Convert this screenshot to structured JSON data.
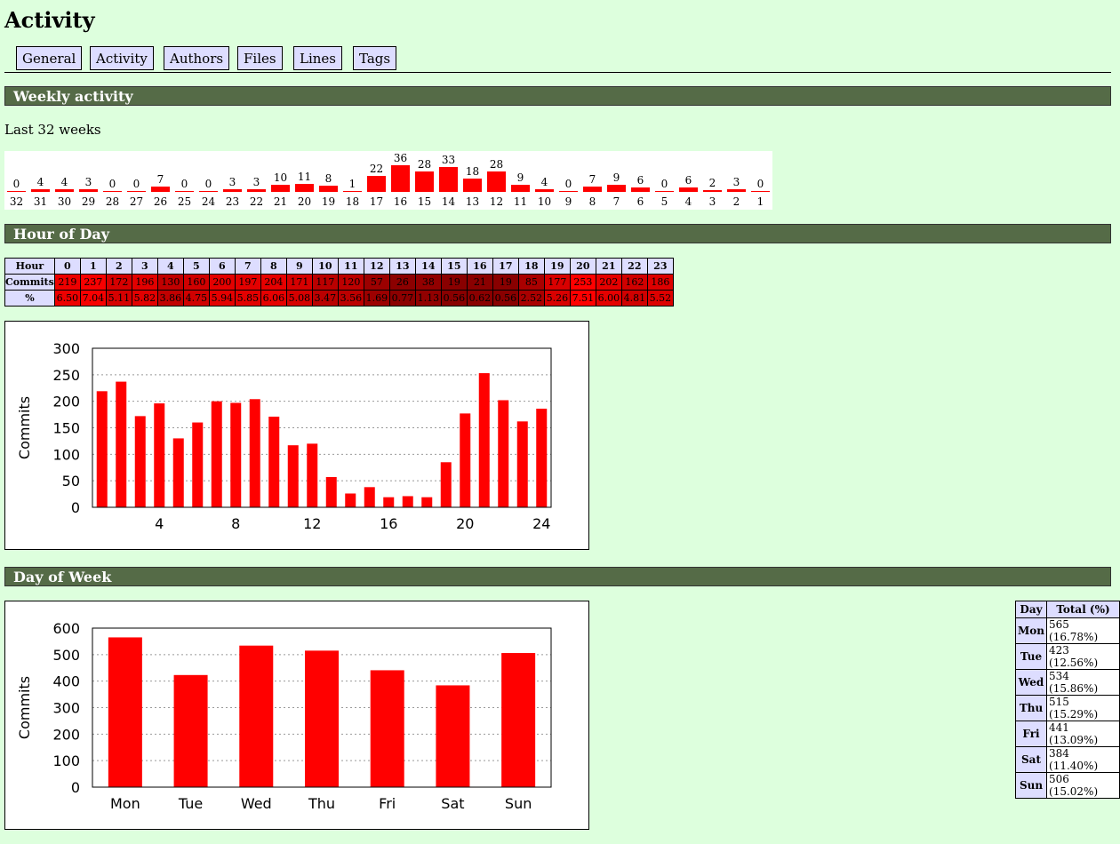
{
  "page_title": "Activity",
  "nav": [
    {
      "label": "General"
    },
    {
      "label": "Activity"
    },
    {
      "label": "Authors"
    },
    {
      "label": "Files"
    },
    {
      "label": "Lines"
    },
    {
      "label": "Tags"
    }
  ],
  "sections": {
    "weekly": "Weekly activity",
    "hour": "Hour of Day",
    "day": "Day of Week"
  },
  "weekly": {
    "subtitle": "Last 32 weeks",
    "weeks": [
      {
        "label": "32",
        "value": 0
      },
      {
        "label": "31",
        "value": 4
      },
      {
        "label": "30",
        "value": 4
      },
      {
        "label": "29",
        "value": 3
      },
      {
        "label": "28",
        "value": 0
      },
      {
        "label": "27",
        "value": 0
      },
      {
        "label": "26",
        "value": 7
      },
      {
        "label": "25",
        "value": 0
      },
      {
        "label": "24",
        "value": 0
      },
      {
        "label": "23",
        "value": 3
      },
      {
        "label": "22",
        "value": 3
      },
      {
        "label": "21",
        "value": 10
      },
      {
        "label": "20",
        "value": 11
      },
      {
        "label": "19",
        "value": 8
      },
      {
        "label": "18",
        "value": 1
      },
      {
        "label": "17",
        "value": 22
      },
      {
        "label": "16",
        "value": 36
      },
      {
        "label": "15",
        "value": 28
      },
      {
        "label": "14",
        "value": 33
      },
      {
        "label": "13",
        "value": 18
      },
      {
        "label": "12",
        "value": 28
      },
      {
        "label": "11",
        "value": 9
      },
      {
        "label": "10",
        "value": 4
      },
      {
        "label": "9",
        "value": 0
      },
      {
        "label": "8",
        "value": 7
      },
      {
        "label": "7",
        "value": 9
      },
      {
        "label": "6",
        "value": 6
      },
      {
        "label": "5",
        "value": 0
      },
      {
        "label": "4",
        "value": 6
      },
      {
        "label": "3",
        "value": 2
      },
      {
        "label": "2",
        "value": 3
      },
      {
        "label": "1",
        "value": 0
      }
    ]
  },
  "hour_table": {
    "row_labels": {
      "hour": "Hour",
      "commits": "Commits",
      "percent": "%"
    },
    "hours": [
      "0",
      "1",
      "2",
      "3",
      "4",
      "5",
      "6",
      "7",
      "8",
      "9",
      "10",
      "11",
      "12",
      "13",
      "14",
      "15",
      "16",
      "17",
      "18",
      "19",
      "20",
      "21",
      "22",
      "23"
    ],
    "commits": [
      "219",
      "237",
      "172",
      "196",
      "130",
      "160",
      "200",
      "197",
      "204",
      "171",
      "117",
      "120",
      "57",
      "26",
      "38",
      "19",
      "21",
      "19",
      "85",
      "177",
      "253",
      "202",
      "162",
      "186"
    ],
    "percent": [
      "6.50",
      "7.04",
      "5.11",
      "5.82",
      "3.86",
      "4.75",
      "5.94",
      "5.85",
      "6.06",
      "5.08",
      "3.47",
      "3.56",
      "1.69",
      "0.77",
      "1.13",
      "0.56",
      "0.62",
      "0.56",
      "2.52",
      "5.26",
      "7.51",
      "6.00",
      "4.81",
      "5.52"
    ]
  },
  "day_table": {
    "headers": [
      "Day",
      "Total (%)"
    ],
    "rows": [
      {
        "day": "Mon",
        "total": "565 (16.78%)"
      },
      {
        "day": "Tue",
        "total": "423 (12.56%)"
      },
      {
        "day": "Wed",
        "total": "534 (15.86%)"
      },
      {
        "day": "Thu",
        "total": "515 (15.29%)"
      },
      {
        "day": "Fri",
        "total": "441 (13.09%)"
      },
      {
        "day": "Sat",
        "total": "384 (11.40%)"
      },
      {
        "day": "Sun",
        "total": "506 (15.02%)"
      }
    ]
  },
  "chart_data": [
    {
      "type": "bar",
      "title": "",
      "xlabel": "",
      "ylabel": "Commits",
      "x": [
        1,
        2,
        3,
        4,
        5,
        6,
        7,
        8,
        9,
        10,
        11,
        12,
        13,
        14,
        15,
        16,
        17,
        18,
        19,
        20,
        21,
        22,
        23,
        24
      ],
      "values": [
        219,
        237,
        172,
        196,
        130,
        160,
        200,
        197,
        204,
        171,
        117,
        120,
        57,
        26,
        38,
        19,
        21,
        19,
        85,
        177,
        253,
        202,
        162,
        186
      ],
      "xticks": [
        "4",
        "8",
        "12",
        "16",
        "20",
        "24"
      ],
      "yticks": [
        "0",
        "50",
        "100",
        "150",
        "200",
        "250",
        "300"
      ],
      "ylim": [
        0,
        300
      ],
      "xlim": [
        0.5,
        24.5
      ],
      "grid": true,
      "color": "#ff0000"
    },
    {
      "type": "bar",
      "title": "",
      "xlabel": "",
      "ylabel": "Commits",
      "categories": [
        "Mon",
        "Tue",
        "Wed",
        "Thu",
        "Fri",
        "Sat",
        "Sun"
      ],
      "values": [
        565,
        423,
        534,
        515,
        441,
        384,
        506
      ],
      "yticks": [
        "0",
        "100",
        "200",
        "300",
        "400",
        "500",
        "600"
      ],
      "ylim": [
        0,
        600
      ],
      "grid": true,
      "color": "#ff0000"
    }
  ]
}
